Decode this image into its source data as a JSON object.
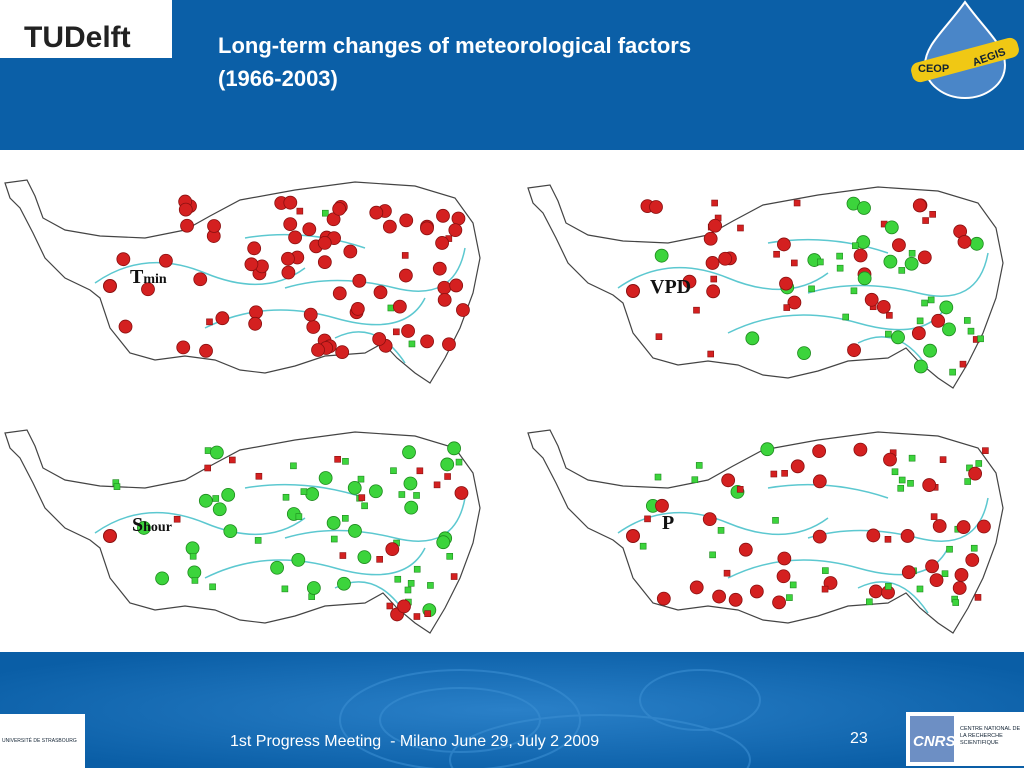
{
  "header": {
    "logo": "TUDelft",
    "title": [
      "Long-term changes of meteorological factors",
      "(1966-2003)"
    ],
    "partner_logo": [
      "CEOP",
      "AEGIS"
    ]
  },
  "panels": [
    {
      "label": "T",
      "sub": "min"
    },
    {
      "label": "VPD",
      "sub": ""
    },
    {
      "label": "S",
      "sub": "hour"
    },
    {
      "label": "P",
      "sub": ""
    }
  ],
  "footer": {
    "left_logo": "UNIVERSITÉ DE STRASBOURG",
    "text": "1st Progress Meeting  - Milano June 29, July 2 2009",
    "page": "23",
    "right_logo": "CNRS",
    "right_logo_text": "CENTRE NATIONAL DE LA RECHERCHE SCIENTIFIQUE"
  }
}
